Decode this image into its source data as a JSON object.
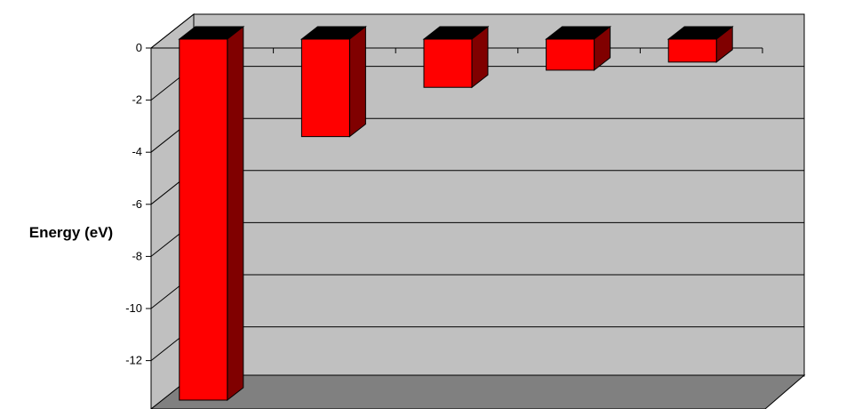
{
  "chart_data": {
    "type": "bar",
    "style": "3d-column",
    "title": "",
    "xlabel": "",
    "ylabel": "Energy (eV)",
    "categories": [
      "",
      "",
      "",
      "",
      ""
    ],
    "values": [
      -13.6,
      -3.4,
      -1.51,
      -0.85,
      -0.54
    ],
    "ylim": [
      -13.6,
      0
    ],
    "yticks": [
      0,
      -2,
      -4,
      -6,
      -8,
      -10,
      -12
    ],
    "ytick_labels": [
      "0",
      "-2",
      "-4",
      "-6",
      "-8",
      "-10",
      "-12"
    ],
    "grid": true,
    "legend": "none",
    "colors": {
      "bar_front": "#ff0000",
      "bar_side": "#800000",
      "bar_top": "#000000",
      "wall": "#c0c0c0",
      "floor": "#808080",
      "gridline": "#000000"
    }
  }
}
